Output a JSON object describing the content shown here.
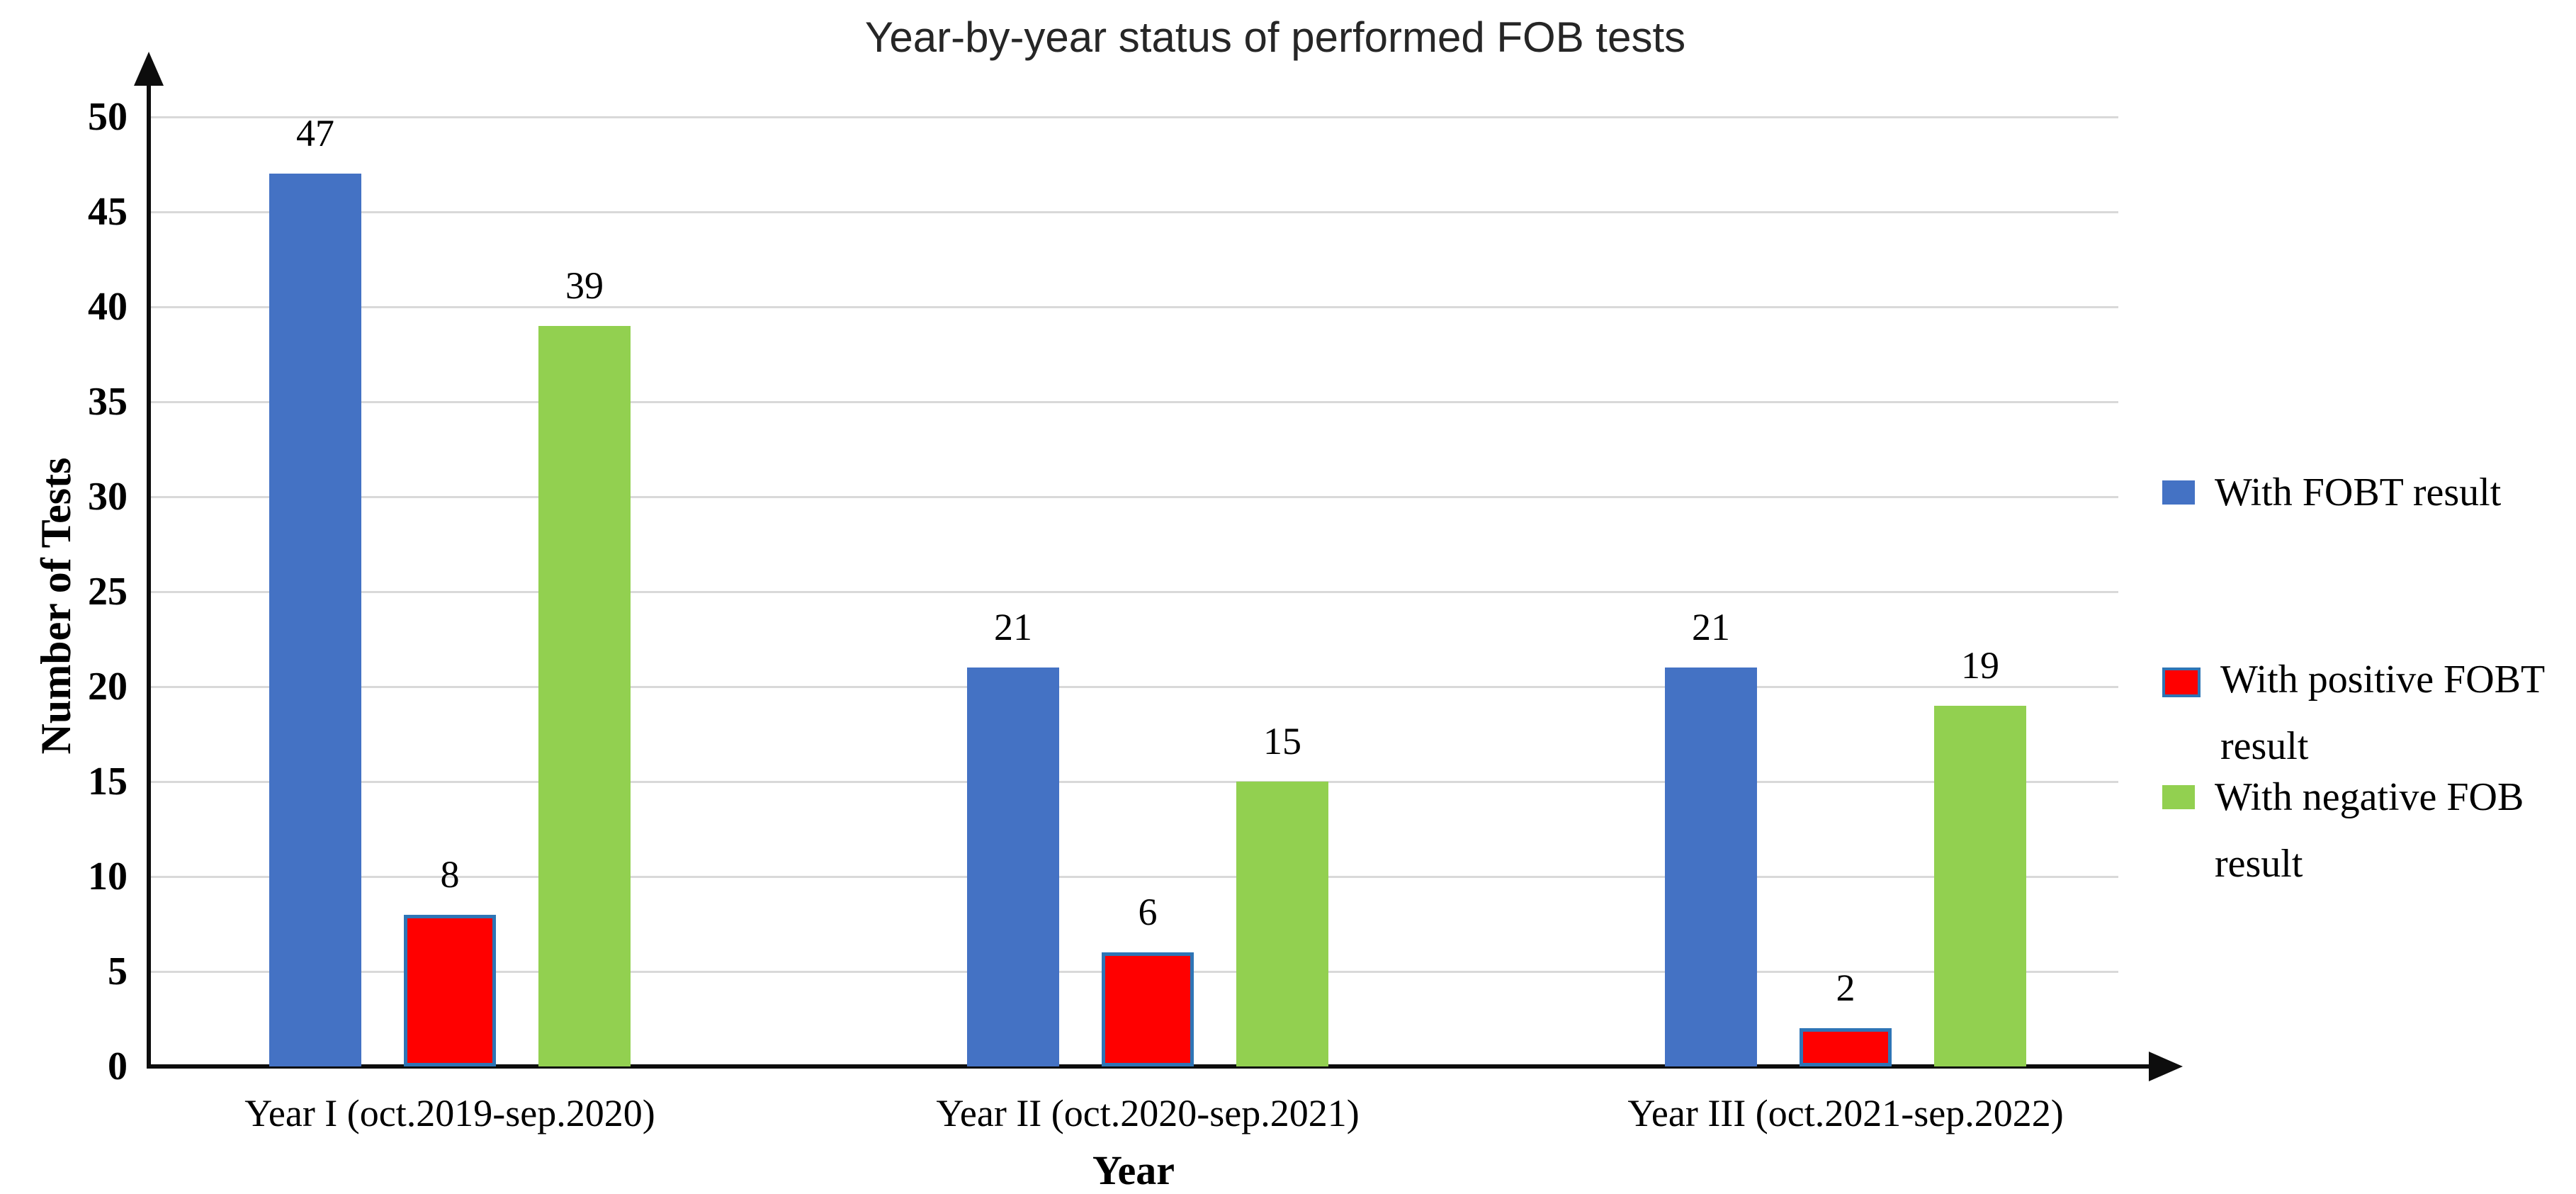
{
  "chart_data": {
    "type": "bar",
    "title": "Year-by-year status of performed FOB tests",
    "xlabel": "Year",
    "ylabel": "Number of Tests",
    "categories": [
      "Year I (oct.2019-sep.2020)",
      "Year II (oct.2020-sep.2021)",
      "Year III (oct.2021-sep.2022)"
    ],
    "series": [
      {
        "name": "With FOBT result",
        "color": "#4472C4",
        "border_color": "#4472C4",
        "values": [
          47,
          21,
          21
        ]
      },
      {
        "name": "With positive FOBT result",
        "color": "#FF0000",
        "border_color": "#2E75B6",
        "values": [
          8,
          6,
          2
        ]
      },
      {
        "name": "With negative FOB result",
        "color": "#92D050",
        "border_color": "#92D050",
        "values": [
          39,
          15,
          19
        ]
      }
    ],
    "ylim": [
      0,
      50
    ],
    "yticks": [
      0,
      5,
      10,
      15,
      20,
      25,
      30,
      35,
      40,
      45,
      50
    ],
    "grid": "horizontal",
    "legend_position": "right",
    "colors": {
      "gridline": "#D9D9D9",
      "axis": "#0D0D0D",
      "title_text": "#262626",
      "label_text": "#000000"
    }
  }
}
